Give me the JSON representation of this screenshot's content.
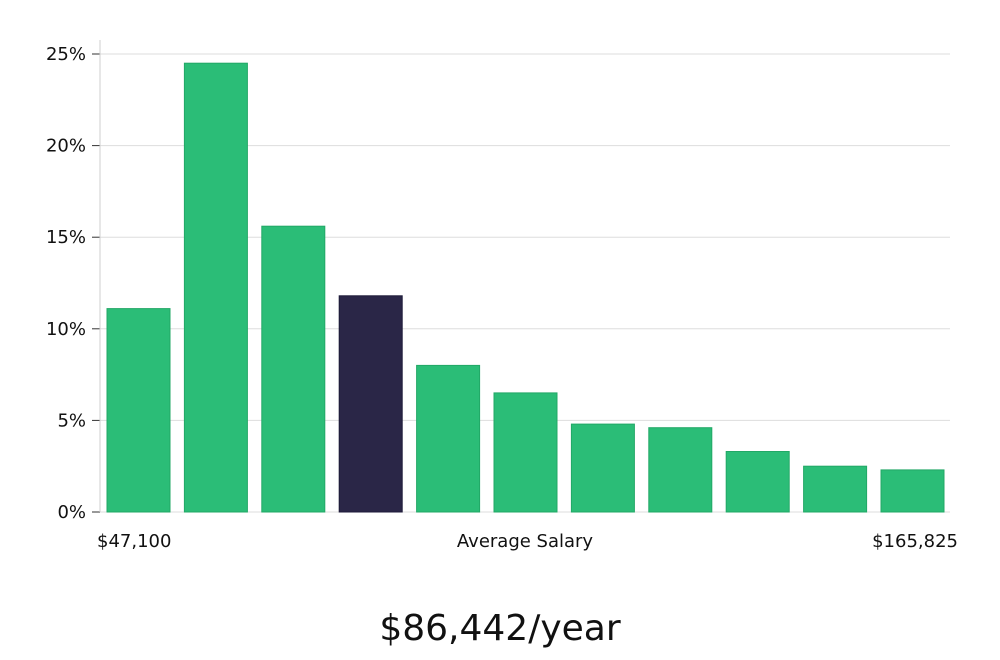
{
  "chart_data": {
    "type": "bar",
    "title": "",
    "xlabel": "Average Salary",
    "ylabel": "",
    "x_range_labels": {
      "min": "$47,100",
      "max": "$165,825"
    },
    "ylim": [
      0,
      25
    ],
    "yticks": [
      0,
      5,
      10,
      15,
      20,
      25
    ],
    "ytick_labels": [
      "0%",
      "5%",
      "10%",
      "15%",
      "20%",
      "25%"
    ],
    "grid": true,
    "values": [
      11.1,
      24.5,
      15.6,
      11.8,
      8.0,
      6.5,
      4.8,
      4.6,
      3.3,
      2.5,
      2.3
    ],
    "highlight_index": 3,
    "colors": {
      "bar": "#2bbd77",
      "bar_edge": "#22a866",
      "highlight": "#2a2647",
      "grid": "#dddddd",
      "axis": "#cfcfcf"
    }
  },
  "summary": {
    "salary_text": "$86,442/year"
  }
}
